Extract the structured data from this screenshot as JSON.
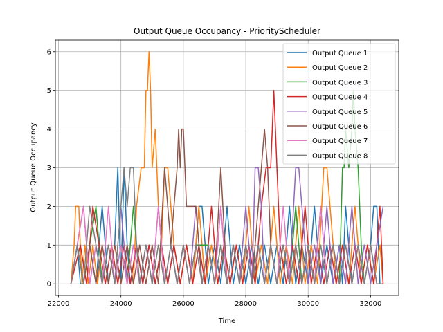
{
  "chart_data": {
    "type": "line",
    "title": "Output Queue Occupancy - PriorityScheduler",
    "xlabel": "Time",
    "ylabel": "Output Queue Occupancy",
    "xlim": [
      21900,
      32900
    ],
    "ylim": [
      -0.3,
      6.3
    ],
    "xticks": [
      22000,
      24000,
      26000,
      28000,
      30000,
      32000
    ],
    "yticks": [
      0,
      1,
      2,
      3,
      4,
      5,
      6
    ],
    "grid": true,
    "legend_position": "upper-right",
    "series": [
      {
        "name": "Output Queue 1",
        "color": "#1f77b4",
        "x": [
          22400,
          22600,
          22700,
          22800,
          23000,
          23200,
          23400,
          23600,
          23800,
          23900,
          24000,
          24100,
          24200,
          24300,
          24500,
          24700,
          24900,
          25100,
          25300,
          25500,
          25700,
          25900,
          26100,
          26300,
          26500,
          26600,
          26800,
          27000,
          27200,
          27400,
          27600,
          27800,
          28000,
          28200,
          28400,
          28600,
          28800,
          29000,
          29200,
          29400,
          29600,
          29800,
          30000,
          30200,
          30400,
          30600,
          30800,
          31000,
          31100,
          31200,
          31400,
          31600,
          31800,
          32000,
          32100,
          32200,
          32300,
          32400
        ],
        "y": [
          0,
          1,
          0,
          0,
          1,
          0,
          2,
          0,
          1,
          3,
          0,
          3,
          1,
          0,
          1,
          0,
          1,
          0,
          1,
          0,
          1,
          0,
          1,
          0,
          2,
          2,
          0,
          1,
          0,
          2,
          0,
          1,
          0,
          1,
          0,
          1,
          0,
          1,
          0,
          2,
          0,
          1,
          0,
          2,
          0,
          1,
          0,
          1,
          0,
          2,
          0,
          1,
          0,
          1,
          2,
          2,
          0,
          0
        ]
      },
      {
        "name": "Output Queue 2",
        "color": "#ff7f0e",
        "x": [
          22400,
          22500,
          22550,
          22650,
          22750,
          22850,
          22950,
          23100,
          23250,
          23400,
          23600,
          23800,
          24000,
          24200,
          24400,
          24500,
          24650,
          24750,
          24800,
          24850,
          24900,
          24950,
          25000,
          25100,
          25200,
          25300,
          25400,
          25500,
          25700,
          25900,
          26100,
          26300,
          26500,
          26700,
          26900,
          27100,
          27300,
          27500,
          27700,
          27900,
          28100,
          28300,
          28500,
          28700,
          28900,
          29100,
          29300,
          29500,
          29700,
          29900,
          30100,
          30300,
          30500,
          30600,
          30700,
          30900,
          31100,
          31300,
          31500,
          31700,
          31900,
          32100,
          32300,
          32400
        ],
        "y": [
          0,
          1,
          2,
          2,
          0,
          1,
          0,
          1,
          0,
          1,
          0,
          1,
          0,
          1,
          0,
          2,
          3,
          3,
          5,
          5,
          6,
          5,
          3,
          4,
          2,
          1,
          3,
          3,
          1,
          0,
          1,
          0,
          2,
          0,
          1,
          0,
          1,
          0,
          1,
          0,
          2,
          0,
          1,
          0,
          2,
          0,
          1,
          0,
          2,
          0,
          1,
          0,
          3,
          3,
          2,
          0,
          1,
          0,
          2,
          0,
          1,
          0,
          1,
          0
        ]
      },
      {
        "name": "Output Queue 3",
        "color": "#2ca02c",
        "x": [
          22400,
          22600,
          22800,
          23000,
          23200,
          23400,
          23600,
          23800,
          24000,
          24200,
          24400,
          24600,
          24800,
          25000,
          25200,
          25400,
          25600,
          25800,
          26000,
          26200,
          26400,
          26600,
          26800,
          27000,
          27200,
          27400,
          27600,
          27800,
          28000,
          28200,
          28400,
          28600,
          28800,
          29000,
          29200,
          29400,
          29600,
          29800,
          30000,
          30200,
          30400,
          30600,
          30800,
          31000,
          31100,
          31150,
          31200,
          31300,
          31400,
          31450,
          31500,
          31600,
          31700,
          31800,
          32000,
          32200,
          32400
        ],
        "y": [
          0,
          1,
          0,
          1,
          2,
          0,
          1,
          0,
          1,
          0,
          2,
          0,
          1,
          0,
          1,
          0,
          1,
          0,
          1,
          0,
          1,
          1,
          1,
          0,
          1,
          0,
          1,
          0,
          1,
          0,
          1,
          0,
          1,
          0,
          1,
          0,
          2,
          0,
          1,
          0,
          1,
          0,
          1,
          0,
          3,
          3,
          4,
          3,
          4,
          5,
          4,
          3,
          1,
          0,
          1,
          0,
          0
        ]
      },
      {
        "name": "Output Queue 4",
        "color": "#d62728",
        "x": [
          22400,
          22700,
          22900,
          23100,
          23300,
          23500,
          23700,
          23900,
          24100,
          24300,
          24500,
          24700,
          24900,
          25100,
          25300,
          25500,
          25700,
          25900,
          26100,
          26300,
          26500,
          26700,
          26900,
          27100,
          27300,
          27500,
          27700,
          27900,
          28100,
          28300,
          28500,
          28650,
          28750,
          28800,
          28850,
          28900,
          28950,
          29000,
          29100,
          29300,
          29500,
          29700,
          29900,
          30100,
          30300,
          30500,
          30700,
          30900,
          31100,
          31300,
          31500,
          31700,
          31900,
          32100,
          32300,
          32400
        ],
        "y": [
          0,
          1,
          0,
          2,
          1,
          0,
          1,
          0,
          1,
          0,
          1,
          0,
          1,
          0,
          1,
          0,
          1,
          0,
          1,
          0,
          1,
          0,
          2,
          0,
          1,
          0,
          1,
          0,
          1,
          0,
          2,
          3,
          3,
          3,
          4,
          5,
          4,
          3,
          1,
          0,
          1,
          0,
          2,
          0,
          1,
          0,
          1,
          0,
          1,
          0,
          1,
          0,
          1,
          0,
          2,
          0
        ]
      },
      {
        "name": "Output Queue 5",
        "color": "#9467bd",
        "x": [
          22400,
          22600,
          22800,
          23000,
          23200,
          23400,
          23600,
          23800,
          24000,
          24200,
          24400,
          24600,
          24800,
          25000,
          25200,
          25400,
          25600,
          25800,
          26000,
          26200,
          26400,
          26600,
          26800,
          27000,
          27200,
          27400,
          27600,
          27800,
          28000,
          28200,
          28300,
          28400,
          28500,
          28600,
          28800,
          29000,
          29200,
          29400,
          29600,
          29700,
          29800,
          30000,
          30200,
          30400,
          30600,
          30800,
          31000,
          31200,
          31400,
          31600,
          31800,
          32000,
          32200,
          32400
        ],
        "y": [
          0,
          1,
          2,
          0,
          1,
          0,
          1,
          0,
          2,
          0,
          1,
          0,
          1,
          0,
          2,
          0,
          1,
          0,
          1,
          0,
          2,
          0,
          1,
          0,
          2,
          0,
          1,
          0,
          2,
          0,
          3,
          3,
          2,
          0,
          1,
          0,
          1,
          0,
          3,
          3,
          2,
          0,
          1,
          0,
          2,
          0,
          1,
          0,
          2,
          0,
          1,
          0,
          1,
          2
        ]
      },
      {
        "name": "Output Queue 6",
        "color": "#8c564b",
        "x": [
          22400,
          22600,
          22800,
          23000,
          23200,
          23400,
          23600,
          23800,
          24000,
          24200,
          24400,
          24600,
          24800,
          25000,
          25200,
          25400,
          25600,
          25800,
          25850,
          25900,
          25950,
          26000,
          26100,
          26200,
          26400,
          26600,
          26800,
          27000,
          27200,
          27400,
          27600,
          27800,
          28000,
          28200,
          28400,
          28500,
          28600,
          28700,
          28800,
          29000,
          29200,
          29400,
          29600,
          29800,
          30000,
          30200,
          30400,
          30600,
          30800,
          31000,
          31200,
          31400,
          31600,
          31800,
          32000,
          32200,
          32400
        ],
        "y": [
          0,
          1,
          0,
          1,
          0,
          1,
          0,
          1,
          0,
          1,
          0,
          1,
          0,
          1,
          0,
          3,
          1,
          3,
          4,
          3,
          4,
          4,
          2,
          2,
          2,
          0,
          1,
          0,
          3,
          0,
          1,
          0,
          1,
          0,
          2,
          3,
          4,
          3,
          1,
          0,
          1,
          0,
          1,
          0,
          1,
          0,
          2,
          0,
          1,
          0,
          1,
          0,
          1,
          0,
          1,
          0,
          0
        ]
      },
      {
        "name": "Output Queue 7",
        "color": "#e377c2",
        "x": [
          22400,
          22600,
          22800,
          23000,
          23200,
          23400,
          23600,
          23800,
          24000,
          24200,
          24400,
          24600,
          24800,
          25000,
          25200,
          25400,
          25600,
          25800,
          26000,
          26200,
          26400,
          26600,
          26800,
          27000,
          27200,
          27400,
          27600,
          27800,
          28000,
          28200,
          28400,
          28600,
          28800,
          29000,
          29200,
          29400,
          29600,
          29800,
          30000,
          30200,
          30400,
          30600,
          30800,
          31000,
          31200,
          31400,
          31600,
          31800,
          32000,
          32200,
          32400
        ],
        "y": [
          0,
          1,
          2,
          0,
          1,
          0,
          2,
          0,
          1,
          0,
          1,
          0,
          1,
          0,
          2,
          0,
          1,
          0,
          1,
          0,
          1,
          0,
          1,
          0,
          2,
          0,
          1,
          0,
          1,
          0,
          1,
          0,
          1,
          0,
          2,
          0,
          1,
          0,
          1,
          0,
          2,
          0,
          1,
          0,
          1,
          0,
          1,
          0,
          1,
          0,
          0
        ]
      },
      {
        "name": "Output Queue 8",
        "color": "#7f7f7f",
        "x": [
          22400,
          22600,
          22800,
          23000,
          23200,
          23400,
          23600,
          23800,
          24000,
          24100,
          24200,
          24300,
          24400,
          24500,
          24600,
          24800,
          25000,
          25200,
          25400,
          25600,
          25800,
          26000,
          26200,
          26400,
          26600,
          26800,
          27000,
          27200,
          27400,
          27600,
          27800,
          28000,
          28200,
          28400,
          28600,
          28800,
          29000,
          29200,
          29400,
          29600,
          29800,
          30000,
          30200,
          30400,
          30600,
          30800,
          31000,
          31200,
          31400,
          31600,
          31800,
          32000,
          32200,
          32400
        ],
        "y": [
          0,
          1,
          0,
          2,
          1,
          0,
          1,
          0,
          2,
          3,
          2,
          3,
          3,
          1,
          0,
          1,
          0,
          1,
          0,
          1,
          0,
          1,
          0,
          1,
          0,
          1,
          0,
          1,
          0,
          1,
          0,
          1,
          0,
          1,
          0,
          1,
          0,
          1,
          0,
          1,
          0,
          1,
          0,
          1,
          0,
          1,
          0,
          1,
          0,
          1,
          0,
          1,
          0,
          0
        ]
      }
    ]
  }
}
